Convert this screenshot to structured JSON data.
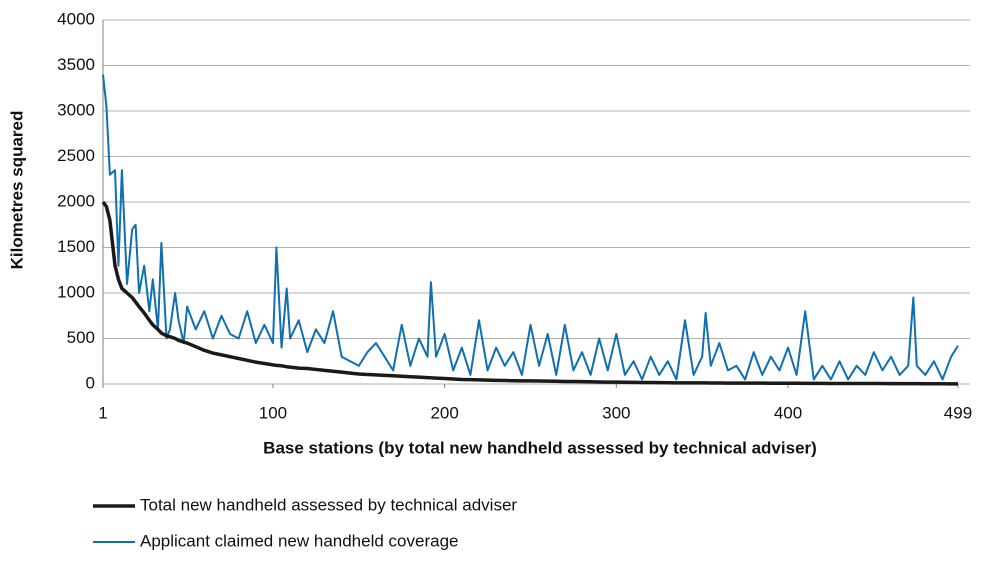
{
  "chart_data": {
    "type": "line",
    "xlabel": "Base stations (by total new handheld assessed by technical adviser)",
    "ylabel": "Kilometres squared",
    "x": [
      1,
      3,
      5,
      8,
      10,
      12,
      15,
      18,
      20,
      22,
      25,
      28,
      30,
      33,
      35,
      38,
      40,
      43,
      45,
      48,
      50,
      55,
      60,
      65,
      70,
      75,
      80,
      85,
      90,
      95,
      100,
      102,
      105,
      108,
      110,
      115,
      120,
      125,
      130,
      135,
      140,
      145,
      150,
      155,
      160,
      165,
      170,
      175,
      180,
      185,
      190,
      192,
      195,
      200,
      205,
      210,
      215,
      220,
      225,
      230,
      235,
      240,
      245,
      250,
      255,
      260,
      265,
      270,
      275,
      280,
      285,
      290,
      295,
      300,
      305,
      310,
      315,
      320,
      325,
      330,
      335,
      340,
      345,
      350,
      352,
      355,
      360,
      365,
      370,
      375,
      380,
      385,
      390,
      395,
      400,
      405,
      410,
      415,
      420,
      425,
      430,
      435,
      440,
      445,
      450,
      455,
      460,
      465,
      470,
      473,
      475,
      480,
      485,
      490,
      495,
      499
    ],
    "series": [
      {
        "name": "Total new handheld assessed by technical adviser",
        "color": "#1a1a1a",
        "width": 3.5,
        "values": [
          2000,
          1950,
          1800,
          1300,
          1150,
          1050,
          1000,
          950,
          900,
          850,
          780,
          700,
          650,
          600,
          560,
          530,
          520,
          500,
          480,
          460,
          450,
          410,
          370,
          340,
          320,
          300,
          280,
          260,
          240,
          225,
          210,
          205,
          200,
          190,
          185,
          175,
          170,
          160,
          150,
          140,
          130,
          120,
          110,
          105,
          100,
          95,
          90,
          85,
          80,
          75,
          70,
          68,
          65,
          60,
          55,
          50,
          48,
          45,
          42,
          40,
          38,
          36,
          35,
          35,
          33,
          32,
          30,
          28,
          27,
          26,
          25,
          22,
          21,
          20,
          19,
          18,
          17,
          16,
          15,
          14,
          13,
          13,
          12,
          12,
          12,
          11,
          11,
          10,
          10,
          10,
          9,
          9,
          8,
          8,
          8,
          8,
          7,
          7,
          7,
          6,
          6,
          6,
          5,
          5,
          5,
          5,
          4,
          4,
          4,
          4,
          4,
          3,
          3,
          3,
          2,
          2
        ]
      },
      {
        "name": "Applicant claimed new handheld coverage",
        "color": "#0f6fb0",
        "width": 2,
        "values": [
          3400,
          3050,
          2300,
          2350,
          1300,
          2350,
          1100,
          1700,
          1750,
          1000,
          1300,
          800,
          1150,
          600,
          1550,
          500,
          600,
          1000,
          700,
          450,
          850,
          600,
          800,
          500,
          750,
          550,
          500,
          800,
          450,
          650,
          450,
          1500,
          400,
          1050,
          500,
          700,
          350,
          600,
          450,
          800,
          300,
          250,
          200,
          350,
          450,
          300,
          150,
          650,
          200,
          500,
          300,
          1120,
          300,
          550,
          150,
          400,
          100,
          700,
          150,
          400,
          200,
          350,
          100,
          650,
          200,
          550,
          100,
          650,
          150,
          350,
          100,
          500,
          150,
          550,
          100,
          250,
          50,
          300,
          100,
          250,
          50,
          700,
          100,
          300,
          780,
          200,
          450,
          150,
          200,
          50,
          350,
          100,
          300,
          150,
          400,
          100,
          800,
          50,
          200,
          50,
          250,
          50,
          200,
          100,
          350,
          150,
          300,
          100,
          200,
          950,
          200,
          100,
          250,
          50,
          300,
          420
        ]
      }
    ],
    "xlim": [
      1,
      506
    ],
    "xticks": [
      1,
      100,
      200,
      300,
      400,
      499
    ],
    "ylim": [
      0,
      4000
    ],
    "yticks": [
      0,
      500,
      1000,
      1500,
      2000,
      2500,
      3000,
      3500,
      4000
    ],
    "grid": true
  }
}
